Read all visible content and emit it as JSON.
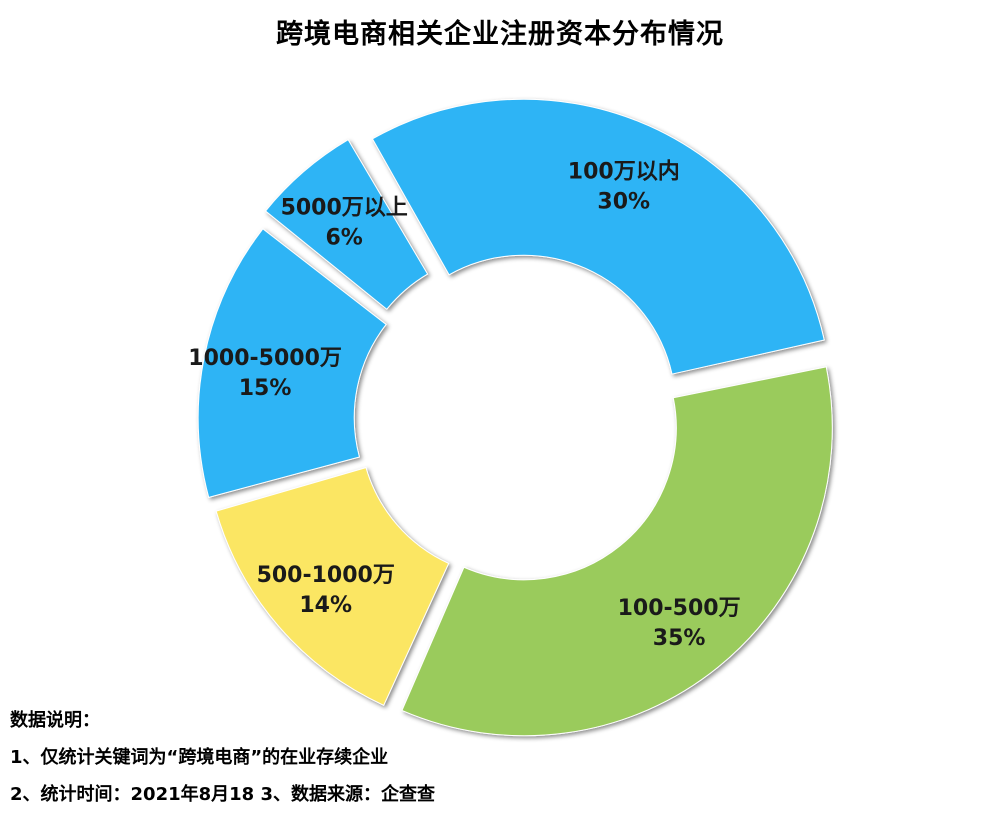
{
  "chart_data": {
    "type": "pie",
    "title": "跨境电商相关企业注册资本分布情况",
    "series": [
      {
        "name": "100万以内",
        "value": 30,
        "label": "30%",
        "color": "#2db4f5"
      },
      {
        "name": "100-500万",
        "value": 35,
        "label": "35%",
        "color": "#9acb5c"
      },
      {
        "name": "500-1000万",
        "value": 14,
        "label": "14%",
        "color": "#fbe664"
      },
      {
        "name": "1000-5000万",
        "value": 15,
        "label": "15%",
        "color": "#2db4f5"
      },
      {
        "name": "5000万以上",
        "value": 6,
        "label": "6%",
        "color": "#2db4f5"
      }
    ],
    "donut": true,
    "exploded": true,
    "legend": "none",
    "labels_on_slices": true
  },
  "notes": {
    "heading": "数据说明：",
    "line1": "1、仅统计关键词为“跨境电商”的在业存续企业",
    "line2": "2、统计时间：2021年8月18   3、数据来源：企查查"
  }
}
